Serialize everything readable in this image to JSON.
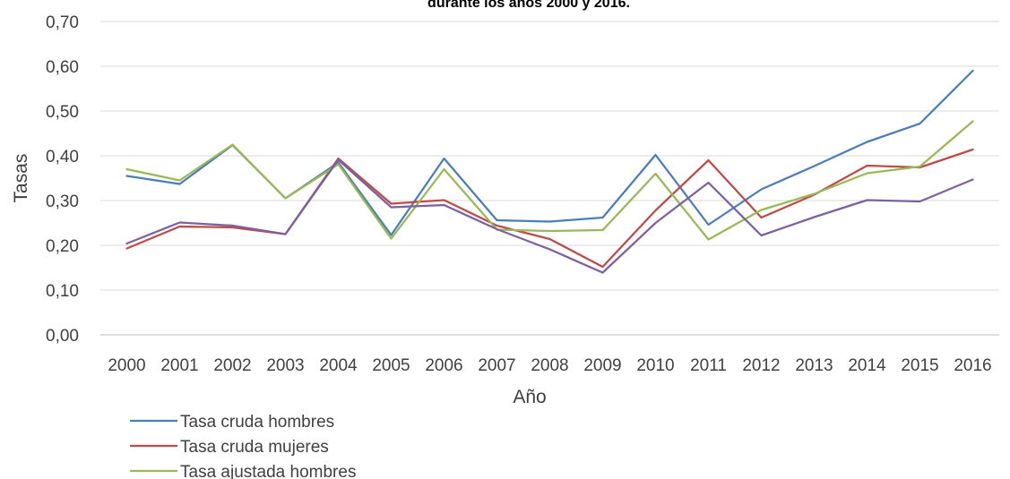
{
  "chart_data": {
    "type": "line",
    "title": "durante los años 2000 y 2016.",
    "xlabel": "Año",
    "ylabel": "Tasas",
    "ylim": [
      0,
      0.7
    ],
    "y_ticks": [
      "0,00",
      "0,10",
      "0,20",
      "0,30",
      "0,40",
      "0,50",
      "0,60",
      "0,70"
    ],
    "grid": "horizontal",
    "legend_position": "bottom-left",
    "categories": [
      "2000",
      "2001",
      "2002",
      "2003",
      "2004",
      "2005",
      "2006",
      "2007",
      "2008",
      "2009",
      "2010",
      "2011",
      "2012",
      "2013",
      "2014",
      "2015",
      "2016"
    ],
    "series": [
      {
        "name": "Tasa cruda hombres",
        "color": "#4A7EBB",
        "values": [
          0.355,
          0.337,
          0.424,
          0.305,
          0.385,
          0.223,
          0.394,
          0.256,
          0.253,
          0.262,
          0.402,
          0.246,
          0.325,
          0.377,
          0.431,
          0.472,
          0.59
        ]
      },
      {
        "name": "Tasa cruda mujeres",
        "color": "#BE4B48",
        "values": [
          0.193,
          0.242,
          0.24,
          0.225,
          0.394,
          0.293,
          0.301,
          0.244,
          0.214,
          0.152,
          0.278,
          0.39,
          0.262,
          0.313,
          0.378,
          0.374,
          0.414
        ]
      },
      {
        "name": "Tasa ajustada hombres",
        "color": "#98B954",
        "values": [
          0.37,
          0.345,
          0.425,
          0.305,
          0.381,
          0.215,
          0.37,
          0.235,
          0.232,
          0.234,
          0.36,
          0.213,
          0.279,
          0.315,
          0.361,
          0.376,
          0.477
        ]
      },
      {
        "color": "#7D60A0",
        "values": [
          0.204,
          0.251,
          0.244,
          0.225,
          0.391,
          0.285,
          0.29,
          0.236,
          0.191,
          0.139,
          0.25,
          0.34,
          0.222,
          0.263,
          0.301,
          0.298,
          0.347
        ]
      }
    ]
  }
}
